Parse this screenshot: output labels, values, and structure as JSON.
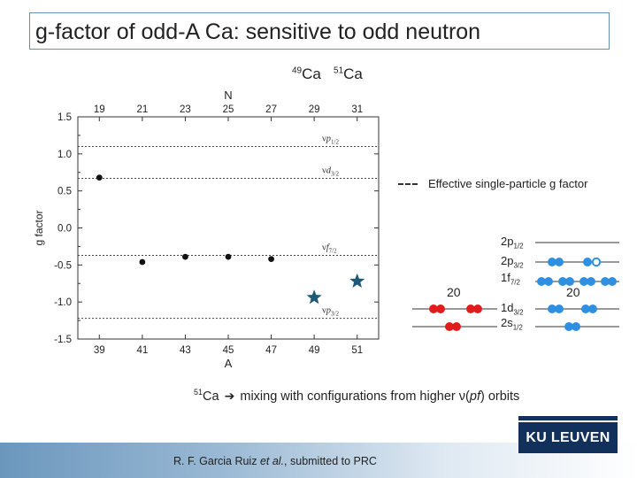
{
  "slide": {
    "title": "g-factor of odd-A Ca: sensitive to odd neutron",
    "top_label_1_mass": "49",
    "top_label_1_elem": "Ca",
    "top_label_2_mass": "51",
    "top_label_2_elem": "Ca",
    "legend_label": "Effective single-particle g factor",
    "note_mass": "51",
    "note_elem": "Ca",
    "note_text_pre": "mixing with configurations from higher ",
    "note_nu": "ν",
    "note_paren_open": "(",
    "note_pf": "pf",
    "note_text_post": ") orbits",
    "footer_citation_pre": "R. F. Garcia Ruiz ",
    "footer_citation_etal": "et al.",
    "footer_citation_post": ", submitted to PRC",
    "logo_text": "KU LEUVEN"
  },
  "chart_data": {
    "type": "scatter",
    "xlabel": "A",
    "x2label": "N",
    "ylabel": "g factor",
    "xlim": [
      38,
      52
    ],
    "ylim": [
      -1.5,
      1.5
    ],
    "x_ticks": [
      39,
      41,
      43,
      45,
      47,
      49,
      51
    ],
    "x2_ticks": [
      19,
      21,
      23,
      25,
      27,
      29,
      31
    ],
    "y_ticks": [
      1.5,
      1.0,
      0.5,
      0.0,
      -0.5,
      -1.0,
      -1.5
    ],
    "y_tick_labels": [
      "1.5",
      "1.0",
      "0.5",
      "0.0",
      "-0.5",
      "-1.0",
      "-1.5"
    ],
    "grid": false,
    "series": [
      {
        "marker": "circle",
        "color": "#111111",
        "x": [
          39,
          41,
          43,
          45,
          47
        ],
        "y": [
          0.68,
          -0.46,
          -0.39,
          -0.39,
          -0.42
        ]
      },
      {
        "marker": "star",
        "color": "#1c5a78",
        "x": [
          49,
          51
        ],
        "y": [
          -0.94,
          -0.72
        ]
      }
    ],
    "reference_lines": [
      {
        "label_nu": "ν",
        "label_orb": "p",
        "label_sub": "1/2",
        "y": 1.1
      },
      {
        "label_nu": "ν",
        "label_orb": "d",
        "label_sub": "3/2",
        "y": 0.67
      },
      {
        "label_nu": "ν",
        "label_orb": "f",
        "label_sub": "7/2",
        "y": -0.37
      },
      {
        "label_nu": "ν",
        "label_orb": "p",
        "label_sub": "3/2",
        "y": -1.22
      }
    ]
  },
  "shell_diagram": {
    "closure_left": "20",
    "closure_right": "20",
    "levels": [
      {
        "orb": "2p",
        "sub": "1/2"
      },
      {
        "orb": "2p",
        "sub": "3/2"
      },
      {
        "orb": "1f",
        "sub": "7/2"
      },
      {
        "orb": "1d",
        "sub": "3/2"
      },
      {
        "orb": "2s",
        "sub": "1/2"
      }
    ],
    "proton_color": "#e11c1c",
    "neutron_color": "#2f8fe0"
  }
}
